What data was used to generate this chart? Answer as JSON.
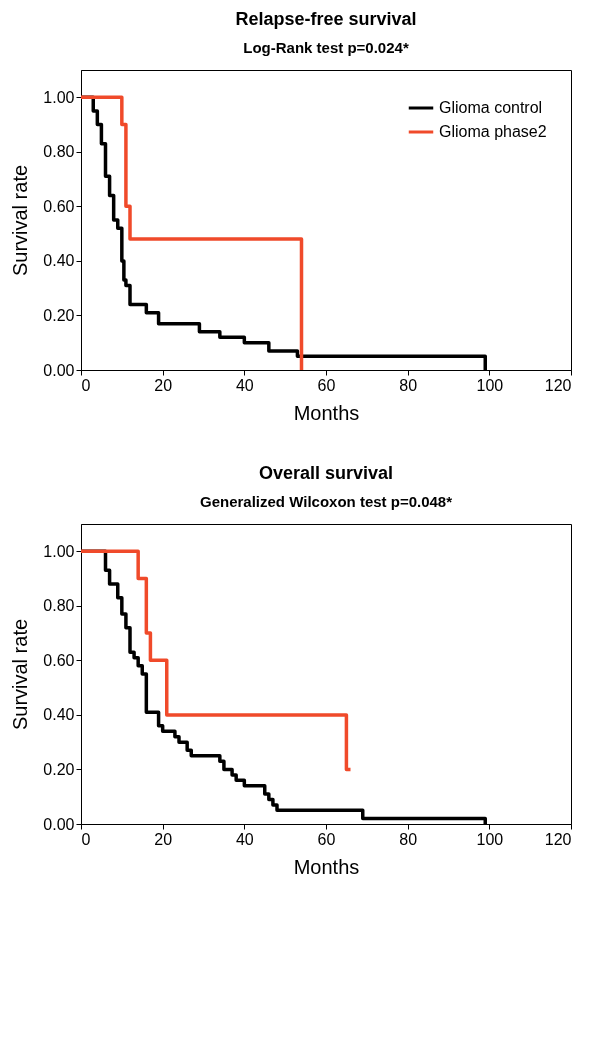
{
  "chart_data": [
    {
      "type": "step",
      "title": "Relapse-free survival",
      "subtitle": "Log-Rank test p=0.024*",
      "xlabel": "Months",
      "ylabel": "Survival rate",
      "xlim": [
        0,
        120
      ],
      "xticks": [
        0,
        20,
        40,
        60,
        80,
        100,
        120
      ],
      "ylim": [
        0,
        1.1
      ],
      "yticks": [
        {
          "value": 0,
          "label": "0.00"
        },
        {
          "value": 0.2,
          "label": "0.20"
        },
        {
          "value": 0.4,
          "label": "0.40"
        },
        {
          "value": 0.6,
          "label": "0.60"
        },
        {
          "value": 0.8,
          "label": "0.80"
        },
        {
          "value": 1,
          "label": "1.00"
        }
      ],
      "legend": "top right",
      "grid": false,
      "series": [
        {
          "name": "Glioma control",
          "color": "#000000",
          "x": [
            0,
            3,
            4,
            5,
            6,
            7,
            8,
            9,
            10,
            10.5,
            11,
            12,
            16,
            19,
            29,
            34,
            40,
            46,
            53,
            99
          ],
          "values": [
            1.0,
            0.95,
            0.9,
            0.83,
            0.71,
            0.64,
            0.55,
            0.52,
            0.4,
            0.33,
            0.31,
            0.24,
            0.21,
            0.17,
            0.14,
            0.12,
            0.1,
            0.07,
            0.05,
            0.0
          ]
        },
        {
          "name": "Glioma phase2",
          "color": "#f04a2a",
          "x": [
            0,
            10,
            11,
            12,
            54
          ],
          "values": [
            1.0,
            0.9,
            0.6,
            0.48,
            0.0
          ]
        }
      ]
    },
    {
      "type": "step",
      "title": "Overall survival",
      "subtitle": "Generalized Wilcoxon test p=0.048*",
      "xlabel": "Months",
      "ylabel": "Survival rate",
      "xlim": [
        0,
        120
      ],
      "xticks": [
        0,
        20,
        40,
        60,
        80,
        100,
        120
      ],
      "ylim": [
        0,
        1.1
      ],
      "yticks": [
        {
          "value": 0,
          "label": "0.00"
        },
        {
          "value": 0.2,
          "label": "0.20"
        },
        {
          "value": 0.4,
          "label": "0.40"
        },
        {
          "value": 0.6,
          "label": "0.60"
        },
        {
          "value": 0.8,
          "label": "0.80"
        },
        {
          "value": 1,
          "label": "1.00"
        }
      ],
      "legend": "top right",
      "grid": false,
      "series": [
        {
          "name": "Glioma control",
          "color": "#000000",
          "x": [
            0,
            6,
            7,
            9,
            10,
            11,
            12,
            13,
            14,
            15,
            16,
            19,
            20,
            23,
            24,
            26,
            27,
            34,
            35,
            37,
            38,
            40,
            45,
            46,
            47,
            48,
            69,
            99
          ],
          "values": [
            1.0,
            0.93,
            0.88,
            0.83,
            0.77,
            0.72,
            0.63,
            0.61,
            0.58,
            0.55,
            0.41,
            0.36,
            0.34,
            0.32,
            0.3,
            0.27,
            0.25,
            0.23,
            0.2,
            0.18,
            0.16,
            0.14,
            0.11,
            0.09,
            0.07,
            0.05,
            0.02,
            0.0
          ]
        },
        {
          "name": "Glioma phase2",
          "color": "#f04a2a",
          "x": [
            0,
            14,
            16,
            17,
            21,
            65,
            66
          ],
          "values": [
            1.0,
            0.9,
            0.7,
            0.6,
            0.4,
            0.2,
            0.2
          ]
        }
      ]
    }
  ]
}
